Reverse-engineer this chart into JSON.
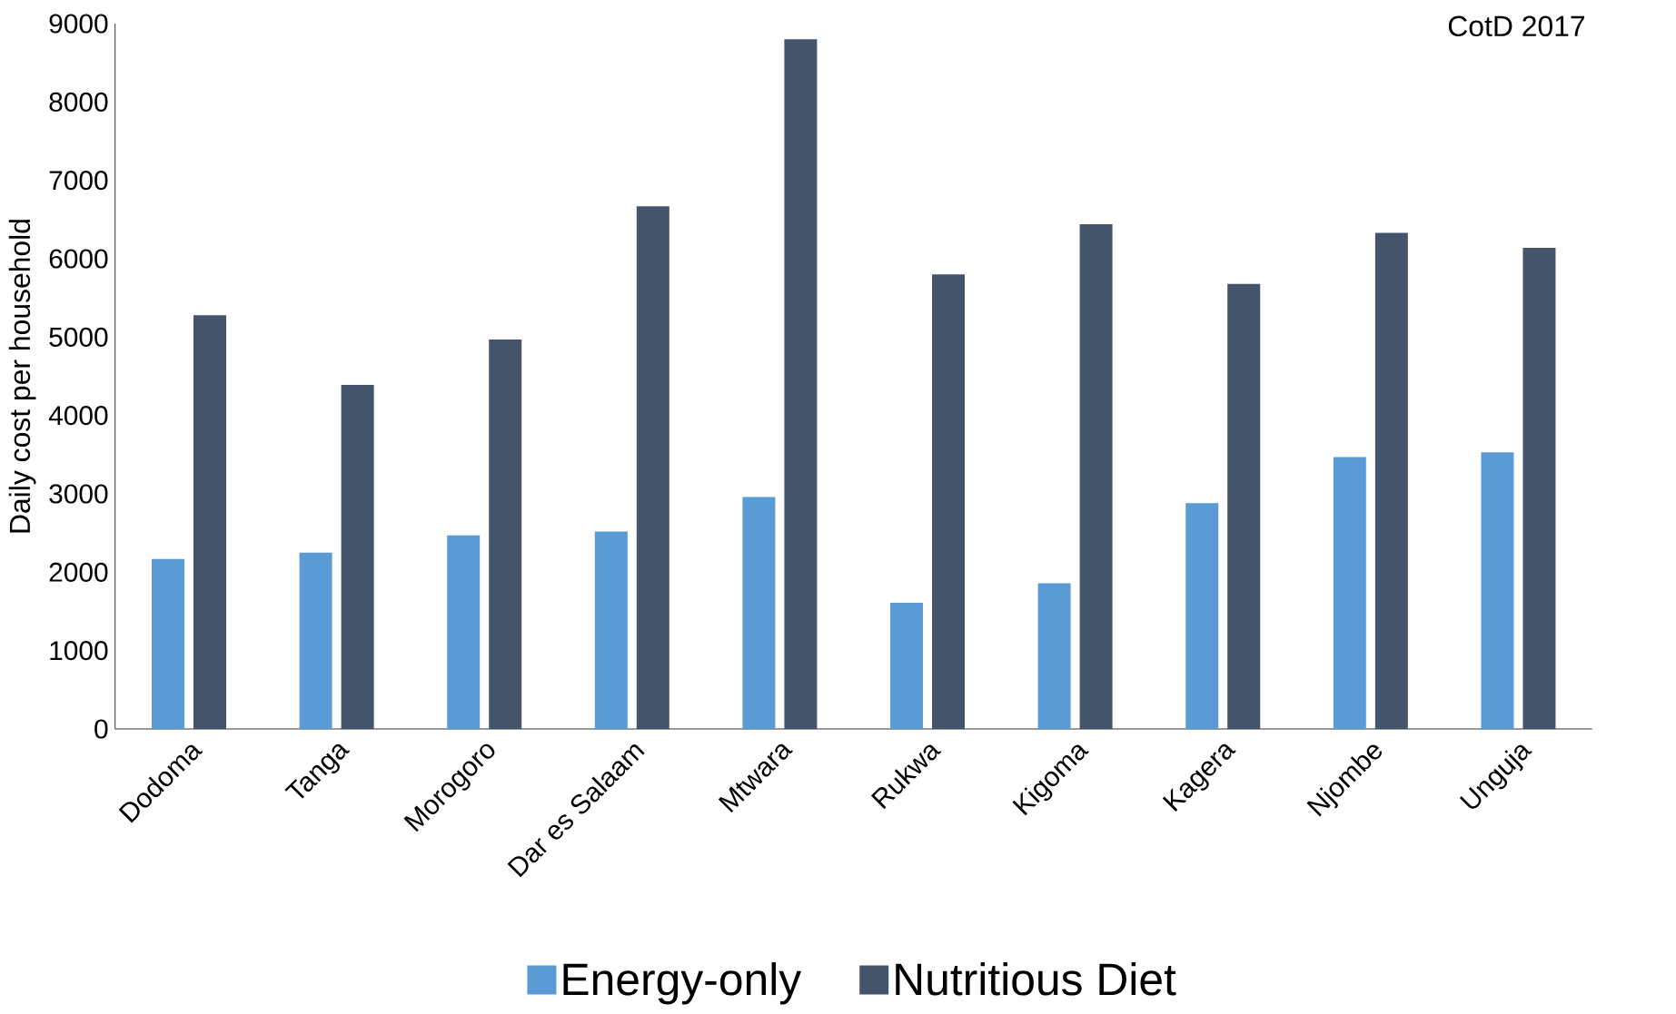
{
  "chart_data": {
    "type": "bar",
    "ylabel": "Daily cost per household",
    "categories": [
      "Dodoma",
      "Tanga",
      "Morogoro",
      "Dar es Salaam",
      "Mtwara",
      "Rukwa",
      "Kigoma",
      "Kagera",
      "Njombe",
      "Unguja"
    ],
    "series": [
      {
        "name": "Energy-only",
        "color": "#5b9bd5",
        "values": [
          2170,
          2250,
          2470,
          2520,
          2960,
          1610,
          1860,
          2880,
          3470,
          3530
        ]
      },
      {
        "name": "Nutritious Diet",
        "color": "#44546a",
        "values": [
          5280,
          4390,
          4970,
          6670,
          8800,
          5800,
          6440,
          5680,
          6330,
          6140
        ]
      }
    ],
    "ylim": [
      0,
      9000
    ],
    "yticks": [
      0,
      1000,
      2000,
      3000,
      4000,
      5000,
      6000,
      7000,
      8000,
      9000
    ],
    "grid": false,
    "legend": "bottom",
    "annotations": [
      "CotD 2017"
    ]
  }
}
